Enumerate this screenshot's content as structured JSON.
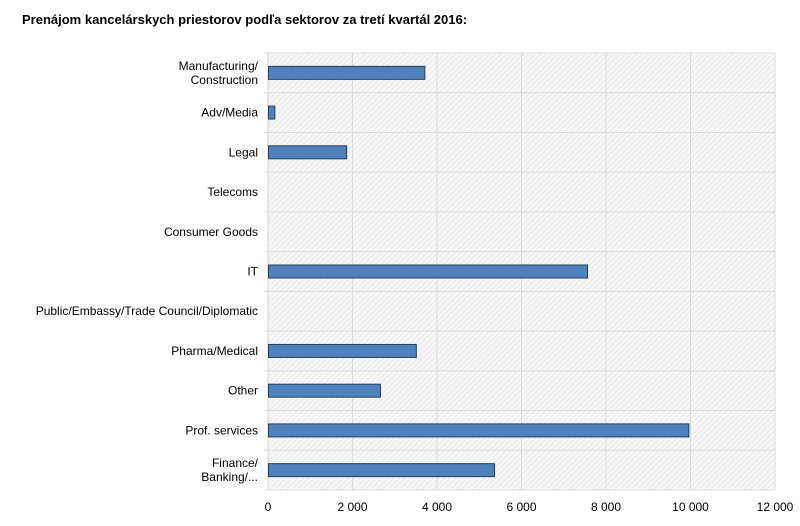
{
  "chart_data": {
    "type": "bar",
    "orientation": "horizontal",
    "title": "Prenájom kancelárskych priestorov podľa sektorov za tretí kvartál 2016:",
    "categories": [
      [
        "Manufacturing/",
        "Construction"
      ],
      [
        "Adv/Media"
      ],
      [
        "Legal"
      ],
      [
        "Telecoms"
      ],
      [
        "Consumer Goods"
      ],
      [
        "IT"
      ],
      [
        "Public/Embassy/Trade Council/Diplomatic"
      ],
      [
        "Pharma/Medical"
      ],
      [
        "Other"
      ],
      [
        "Prof. services"
      ],
      [
        "Finance/",
        "Banking/..."
      ]
    ],
    "values": [
      3700,
      150,
      1850,
      0,
      0,
      7550,
      0,
      3500,
      2650,
      9950,
      5350
    ],
    "xlim": [
      0,
      12000
    ],
    "xticks": [
      0,
      2000,
      4000,
      6000,
      8000,
      10000,
      12000
    ],
    "xtick_labels": [
      "0",
      "2 000",
      "4 000",
      "6 000",
      "8 000",
      "10 000",
      "12 000"
    ],
    "xlabel": "",
    "ylabel": "",
    "grid": true,
    "bar_color": "#4f81bd",
    "bar_edge_color": "#243f60"
  }
}
